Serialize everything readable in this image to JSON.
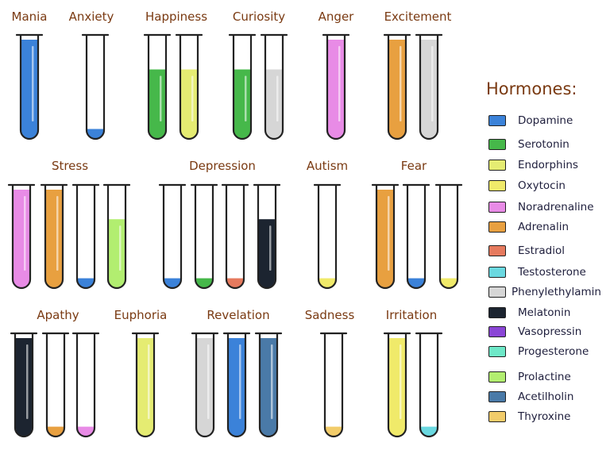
{
  "legend": {
    "title": "Hormones:",
    "items": [
      {
        "label": "Dopamine",
        "color": "#3b82d9"
      },
      {
        "label": "Serotonin",
        "color": "#46b84a"
      },
      {
        "label": "Endorphins",
        "color": "#e5ec72"
      },
      {
        "label": "Oxytocin",
        "color": "#f0ea6a"
      },
      {
        "label": "Noradrenaline",
        "color": "#e88be6"
      },
      {
        "label": "Adrenalin",
        "color": "#e8a040"
      },
      {
        "label": "Estradiol",
        "color": "#e67a5e"
      },
      {
        "label": "Testosterone",
        "color": "#6ad8e0"
      },
      {
        "label": "Phenylethylamin",
        "color": "#d6d6d6"
      },
      {
        "label": "Melatonin",
        "color": "#1c2430"
      },
      {
        "label": "Vasopressin",
        "color": "#8a46d6"
      },
      {
        "label": "Progesterone",
        "color": "#6ee8c8"
      },
      {
        "label": "Prolactine",
        "color": "#b2ee70"
      },
      {
        "label": "Acetilholin",
        "color": "#4a7aa8"
      },
      {
        "label": "Thyroxine",
        "color": "#f2cc6a"
      }
    ]
  },
  "emotions": [
    {
      "label": "Mania",
      "tubes": [
        {
          "hormone": "Dopamine",
          "level": 1.0
        }
      ]
    },
    {
      "label": "Anxiety",
      "tubes": [
        {
          "hormone": "Dopamine",
          "level": 0.1
        }
      ]
    },
    {
      "label": "Happiness",
      "tubes": [
        {
          "hormone": "Serotonin",
          "level": 0.7
        },
        {
          "hormone": "Endorphins",
          "level": 0.7
        }
      ]
    },
    {
      "label": "Curiosity",
      "tubes": [
        {
          "hormone": "Serotonin",
          "level": 0.7
        },
        {
          "hormone": "Phenylethylamin",
          "level": 0.7
        }
      ]
    },
    {
      "label": "Anger",
      "tubes": [
        {
          "hormone": "Noradrenaline",
          "level": 1.0
        }
      ]
    },
    {
      "label": "Excitement",
      "tubes": [
        {
          "hormone": "Adrenalin",
          "level": 1.0
        },
        {
          "hormone": "Phenylethylamin",
          "level": 1.0
        }
      ]
    },
    {
      "label": "Stress",
      "tubes": [
        {
          "hormone": "Noradrenaline",
          "level": 1.0
        },
        {
          "hormone": "Adrenalin",
          "level": 1.0
        },
        {
          "hormone": "Dopamine",
          "level": 0.1
        },
        {
          "hormone": "Prolactine",
          "level": 0.7
        }
      ]
    },
    {
      "label": "Depression",
      "tubes": [
        {
          "hormone": "Dopamine",
          "level": 0.1
        },
        {
          "hormone": "Serotonin",
          "level": 0.1
        },
        {
          "hormone": "Estradiol",
          "level": 0.1
        },
        {
          "hormone": "Melatonin",
          "level": 0.7
        }
      ]
    },
    {
      "label": "Autism",
      "tubes": [
        {
          "hormone": "Oxytocin",
          "level": 0.1
        }
      ]
    },
    {
      "label": "Fear",
      "tubes": [
        {
          "hormone": "Adrenalin",
          "level": 1.0
        },
        {
          "hormone": "Dopamine",
          "level": 0.1
        },
        {
          "hormone": "Oxytocin",
          "level": 0.1
        }
      ]
    },
    {
      "label": "Apathy",
      "tubes": [
        {
          "hormone": "Melatonin",
          "level": 1.0
        },
        {
          "hormone": "Adrenalin",
          "level": 0.1
        },
        {
          "hormone": "Noradrenaline",
          "level": 0.1
        }
      ]
    },
    {
      "label": "Euphoria",
      "tubes": [
        {
          "hormone": "Endorphins",
          "level": 1.0
        }
      ]
    },
    {
      "label": "Revelation",
      "tubes": [
        {
          "hormone": "Phenylethylamin",
          "level": 1.0
        },
        {
          "hormone": "Dopamine",
          "level": 1.0
        },
        {
          "hormone": "Acetilholin",
          "level": 1.0
        }
      ]
    },
    {
      "label": "Sadness",
      "tubes": [
        {
          "hormone": "Thyroxine",
          "level": 0.1
        }
      ]
    },
    {
      "label": "Irritation",
      "tubes": [
        {
          "hormone": "Oxytocin",
          "level": 1.0
        },
        {
          "hormone": "Testosterone",
          "level": 0.1
        }
      ]
    }
  ]
}
